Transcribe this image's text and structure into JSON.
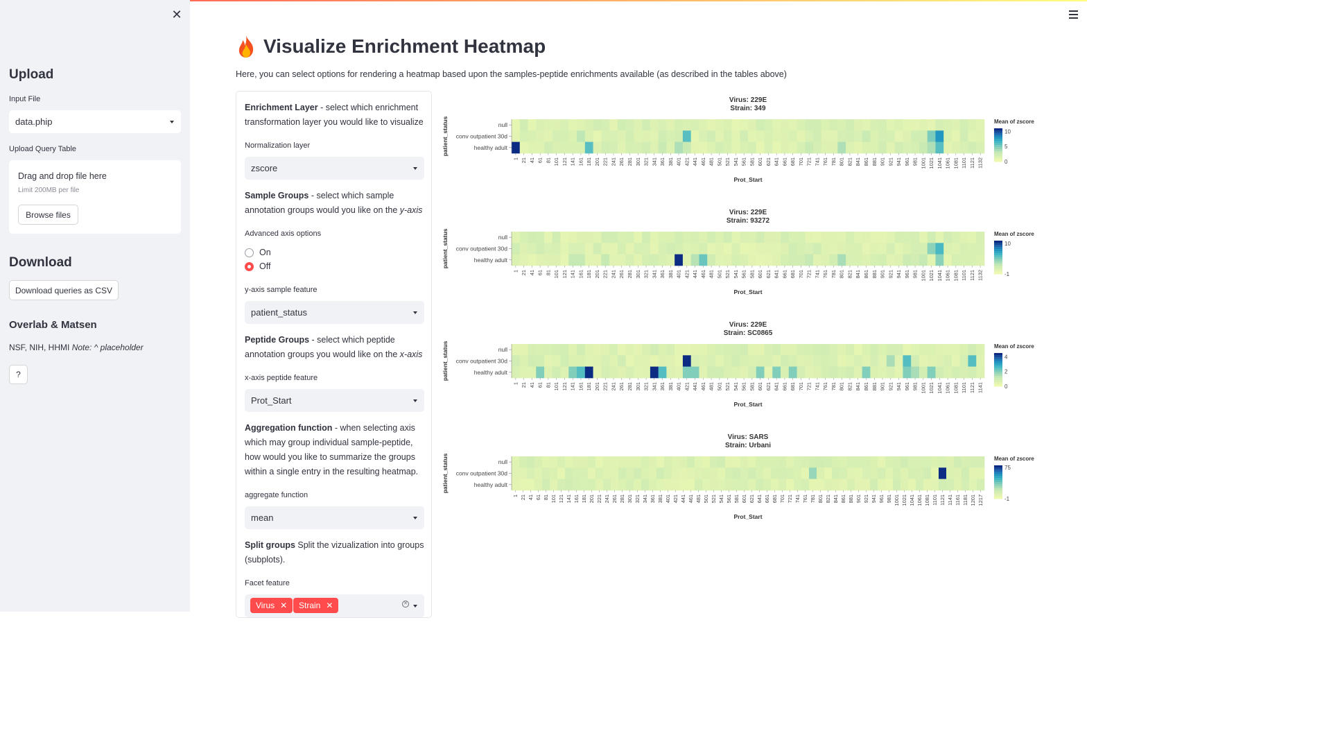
{
  "sidebar": {
    "close_icon": "close-icon",
    "upload_heading": "Upload",
    "input_file_label": "Input File",
    "input_file_value": "data.phip",
    "upload_query_label": "Upload Query Table",
    "drop_title": "Drag and drop file here",
    "drop_limit": "Limit 200MB per file",
    "browse_button": "Browse files",
    "download_heading": "Download",
    "download_button": "Download queries as CSV",
    "overlab_heading": "Overlab & Matsen",
    "funding_text": "NSF, NIH, HHMI",
    "note_text": "Note: ^ placeholder",
    "help_button": "?"
  },
  "header": {
    "menu_icon": "hamburger-menu-icon",
    "title_icon": "fire-icon",
    "title": "Visualize Enrichment Heatmap",
    "subtitle": "Here, you can select options for rendering a heatmap based upon the samples-peptide enrichments available (as described in the tables above)"
  },
  "form": {
    "enrichment_heading": "Enrichment Layer",
    "enrichment_desc": " - select which enrichment transformation layer you would like to visualize",
    "normalization_label": "Normalization layer",
    "normalization_value": "zscore",
    "sample_heading": "Sample Groups",
    "sample_desc": " - select which sample annotation groups would you like on the ",
    "sample_axis": "y-axis",
    "advanced_label": "Advanced axis options",
    "radio_on": "On",
    "radio_off": "Off",
    "radio_selected": "Off",
    "yfeature_label": "y-axis sample feature",
    "yfeature_value": "patient_status",
    "peptide_heading": "Peptide Groups",
    "peptide_desc": " - select which peptide annotation groups you would like on the ",
    "peptide_axis": "x-axis",
    "xfeature_label": "x-axis peptide feature",
    "xfeature_value": "Prot_Start",
    "agg_heading": "Aggregation function",
    "agg_desc": " - when selecting axis which may group individual sample-peptide, how would you like to summarize the groups within a single entry in the resulting heatmap.",
    "agg_label": "aggregate function",
    "agg_value": "mean",
    "split_heading": "Split groups",
    "split_desc": " Split the vizualization into groups (subplots).",
    "facet_label": "Facet feature",
    "facet_tags": [
      "Virus",
      "Strain"
    ]
  },
  "chart_data": [
    {
      "type": "heatmap",
      "title": "Virus: 229E",
      "subtitle": "Strain: 349",
      "xlabel": "Prot_Start",
      "ylabel": "patient_status",
      "rows": [
        "null",
        "conv outpatient 30d",
        "healthy adult"
      ],
      "x_ticks": [
        "1",
        "21",
        "41",
        "61",
        "81",
        "101",
        "121",
        "141",
        "161",
        "181",
        "201",
        "221",
        "241",
        "261",
        "281",
        "301",
        "321",
        "341",
        "361",
        "381",
        "401",
        "421",
        "441",
        "461",
        "481",
        "501",
        "521",
        "541",
        "561",
        "581",
        "601",
        "621",
        "641",
        "661",
        "681",
        "701",
        "721",
        "741",
        "761",
        "781",
        "801",
        "821",
        "841",
        "861",
        "881",
        "901",
        "921",
        "941",
        "961",
        "981",
        "1001",
        "1021",
        "1041",
        "1061",
        "1081",
        "1101",
        "1121",
        "1132"
      ],
      "legend_title": "Mean of zscore",
      "legend_ticks": [
        "10",
        "5",
        "0"
      ],
      "vmin": 0,
      "vmax": 11,
      "hot_cells": [
        {
          "row": "healthy adult",
          "x": "1",
          "value": 11
        },
        {
          "row": "healthy adult",
          "x": "181",
          "value": 6
        },
        {
          "row": "conv outpatient 30d",
          "x": "161",
          "value": 3
        },
        {
          "row": "conv outpatient 30d",
          "x": "421",
          "value": 6
        },
        {
          "row": "healthy adult",
          "x": "401",
          "value": 3.5
        },
        {
          "row": "healthy adult",
          "x": "361",
          "value": 2.5
        },
        {
          "row": "healthy adult",
          "x": "421",
          "value": 2.5
        },
        {
          "row": "healthy adult",
          "x": "721",
          "value": 2.5
        },
        {
          "row": "healthy adult",
          "x": "801",
          "value": 3.5
        },
        {
          "row": "conv outpatient 30d",
          "x": "861",
          "value": 2.5
        },
        {
          "row": "conv outpatient 30d",
          "x": "1021",
          "value": 5
        },
        {
          "row": "healthy adult",
          "x": "1001",
          "value": 2.5
        },
        {
          "row": "healthy adult",
          "x": "1021",
          "value": 3.5
        },
        {
          "row": "conv outpatient 30d",
          "x": "1041",
          "value": 8
        },
        {
          "row": "healthy adult",
          "x": "1041",
          "value": 6
        }
      ]
    },
    {
      "type": "heatmap",
      "title": "Virus: 229E",
      "subtitle": "Strain: 93272",
      "xlabel": "Prot_Start",
      "ylabel": "patient_status",
      "rows": [
        "null",
        "conv outpatient 30d",
        "healthy adult"
      ],
      "x_ticks": [
        "1",
        "21",
        "41",
        "61",
        "81",
        "101",
        "121",
        "141",
        "161",
        "181",
        "201",
        "221",
        "241",
        "261",
        "281",
        "301",
        "321",
        "341",
        "361",
        "381",
        "401",
        "421",
        "441",
        "461",
        "481",
        "501",
        "521",
        "541",
        "561",
        "581",
        "601",
        "621",
        "641",
        "661",
        "681",
        "701",
        "721",
        "741",
        "761",
        "781",
        "801",
        "821",
        "841",
        "861",
        "881",
        "901",
        "921",
        "941",
        "961",
        "981",
        "1001",
        "1021",
        "1041",
        "1061",
        "1081",
        "1101",
        "1121",
        "1132"
      ],
      "legend_title": "Mean of zscore",
      "legend_ticks": [
        "10",
        "-1"
      ],
      "vmin": -1,
      "vmax": 11,
      "hot_cells": [
        {
          "row": "healthy adult",
          "x": "401",
          "value": 11
        },
        {
          "row": "healthy adult",
          "x": "461",
          "value": 5
        },
        {
          "row": "healthy adult",
          "x": "441",
          "value": 2.5
        },
        {
          "row": "healthy adult",
          "x": "141",
          "value": 2
        },
        {
          "row": "healthy adult",
          "x": "161",
          "value": 2
        },
        {
          "row": "healthy adult",
          "x": "221",
          "value": 2
        },
        {
          "row": "healthy adult",
          "x": "721",
          "value": 2
        },
        {
          "row": "healthy adult",
          "x": "801",
          "value": 3
        },
        {
          "row": "conv outpatient 30d",
          "x": "1021",
          "value": 4
        },
        {
          "row": "conv outpatient 30d",
          "x": "1041",
          "value": 6
        },
        {
          "row": "healthy adult",
          "x": "1041",
          "value": 4
        },
        {
          "row": "healthy adult",
          "x": "1001",
          "value": 2
        },
        {
          "row": "healthy adult",
          "x": "961",
          "value": 1.5
        }
      ]
    },
    {
      "type": "heatmap",
      "title": "Virus: 229E",
      "subtitle": "Strain: SC0865",
      "xlabel": "Prot_Start",
      "ylabel": "patient_status",
      "rows": [
        "null",
        "conv outpatient 30d",
        "healthy adult"
      ],
      "x_ticks": [
        "1",
        "21",
        "41",
        "61",
        "81",
        "101",
        "121",
        "141",
        "161",
        "181",
        "201",
        "221",
        "241",
        "261",
        "281",
        "301",
        "321",
        "341",
        "361",
        "381",
        "401",
        "421",
        "441",
        "461",
        "481",
        "501",
        "521",
        "541",
        "561",
        "581",
        "601",
        "621",
        "641",
        "661",
        "681",
        "701",
        "721",
        "741",
        "761",
        "781",
        "801",
        "821",
        "841",
        "861",
        "881",
        "901",
        "921",
        "941",
        "961",
        "981",
        "1001",
        "1021",
        "1041",
        "1061",
        "1081",
        "1101",
        "1121",
        "1141"
      ],
      "legend_title": "Mean of zscore",
      "legend_ticks": [
        "4",
        "2",
        "0"
      ],
      "vmin": 0,
      "vmax": 4.5,
      "hot_cells": [
        {
          "row": "healthy adult",
          "x": "181",
          "value": 4.5
        },
        {
          "row": "healthy adult",
          "x": "341",
          "value": 4.5
        },
        {
          "row": "conv outpatient 30d",
          "x": "421",
          "value": 4.5
        },
        {
          "row": "healthy adult",
          "x": "61",
          "value": 2
        },
        {
          "row": "healthy adult",
          "x": "141",
          "value": 2
        },
        {
          "row": "healthy adult",
          "x": "161",
          "value": 2.5
        },
        {
          "row": "healthy adult",
          "x": "361",
          "value": 2.5
        },
        {
          "row": "healthy adult",
          "x": "421",
          "value": 2
        },
        {
          "row": "healthy adult",
          "x": "441",
          "value": 2
        },
        {
          "row": "healthy adult",
          "x": "601",
          "value": 2
        },
        {
          "row": "healthy adult",
          "x": "641",
          "value": 2
        },
        {
          "row": "healthy adult",
          "x": "681",
          "value": 2
        },
        {
          "row": "healthy adult",
          "x": "861",
          "value": 2
        },
        {
          "row": "conv outpatient 30d",
          "x": "961",
          "value": 2.5
        },
        {
          "row": "healthy adult",
          "x": "961",
          "value": 2
        },
        {
          "row": "healthy adult",
          "x": "1021",
          "value": 2
        },
        {
          "row": "conv outpatient 30d",
          "x": "1121",
          "value": 2.5
        },
        {
          "row": "conv outpatient 30d",
          "x": "921",
          "value": 1.5
        },
        {
          "row": "healthy adult",
          "x": "981",
          "value": 1.5
        }
      ]
    },
    {
      "type": "heatmap",
      "title": "Virus: SARS",
      "subtitle": "Strain: Urbani",
      "xlabel": "Prot_Start",
      "ylabel": "patient_status",
      "rows": [
        "null",
        "conv outpatient 30d",
        "healthy adult"
      ],
      "x_ticks": [
        "1",
        "21",
        "41",
        "61",
        "81",
        "101",
        "121",
        "141",
        "161",
        "181",
        "201",
        "221",
        "241",
        "261",
        "281",
        "301",
        "321",
        "341",
        "361",
        "381",
        "401",
        "421",
        "441",
        "461",
        "481",
        "501",
        "521",
        "541",
        "561",
        "581",
        "601",
        "621",
        "641",
        "661",
        "681",
        "701",
        "721",
        "741",
        "761",
        "781",
        "801",
        "821",
        "841",
        "861",
        "881",
        "901",
        "921",
        "941",
        "961",
        "981",
        "1001",
        "1021",
        "1041",
        "1061",
        "1081",
        "1101",
        "1121",
        "1141",
        "1161",
        "1181",
        "1201",
        "1217"
      ],
      "legend_title": "Mean of zscore",
      "legend_ticks": [
        "75",
        "-1"
      ],
      "vmin": -1,
      "vmax": 80,
      "hot_cells": [
        {
          "row": "conv outpatient 30d",
          "x": "781",
          "value": 30
        },
        {
          "row": "conv outpatient 30d",
          "x": "1121",
          "value": 80
        },
        {
          "row": "conv outpatient 30d",
          "x": "761",
          "value": 4
        }
      ]
    }
  ]
}
